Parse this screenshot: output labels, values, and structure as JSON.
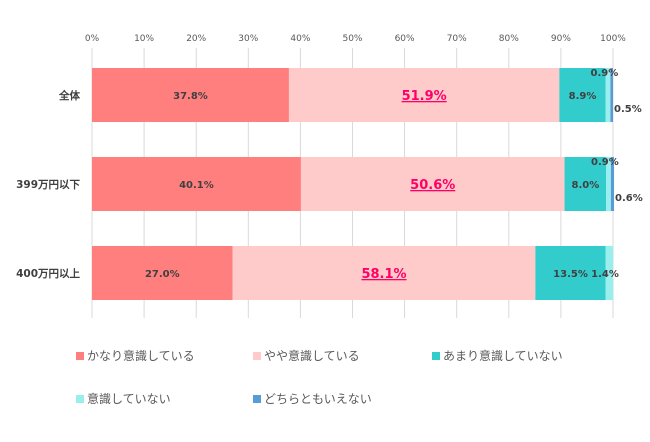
{
  "chart_data": {
    "type": "bar",
    "orientation": "horizontal",
    "stacked": true,
    "categories": [
      "全体",
      "399万円以下",
      "400万円以上"
    ],
    "xlim": [
      0,
      100
    ],
    "x_ticks": [
      "0%",
      "10%",
      "20%",
      "30%",
      "40%",
      "50%",
      "60%",
      "70%",
      "80%",
      "90%",
      "100%"
    ],
    "grid": true,
    "legend_position": "bottom",
    "series": [
      {
        "name": "かなり意識している",
        "color": "#ff7f7f",
        "values": [
          37.8,
          40.1,
          27.0
        ],
        "labels": [
          "37.8%",
          "40.1%",
          "27.0%"
        ]
      },
      {
        "name": "やや意識している",
        "color": "#ffcaca",
        "values": [
          51.9,
          50.6,
          58.1
        ],
        "labels": [
          "51.9%",
          "50.6%",
          "58.1%"
        ],
        "label_color": "#ff0066",
        "label_emphasis": true
      },
      {
        "name": "あまり意識していない",
        "color": "#33cccc",
        "values": [
          8.9,
          8.0,
          13.5
        ],
        "labels": [
          "8.9%",
          "8.0%",
          "13.5%"
        ]
      },
      {
        "name": "意識していない",
        "color": "#99eeee",
        "values": [
          0.9,
          0.9,
          1.4
        ],
        "labels": [
          "0.9%",
          "0.9%",
          "1.4%"
        ]
      },
      {
        "name": "どちらともいえない",
        "color": "#5b9bd5",
        "values": [
          0.5,
          0.6,
          0
        ],
        "labels": [
          "0.5%",
          "0.6%",
          ""
        ]
      }
    ]
  }
}
